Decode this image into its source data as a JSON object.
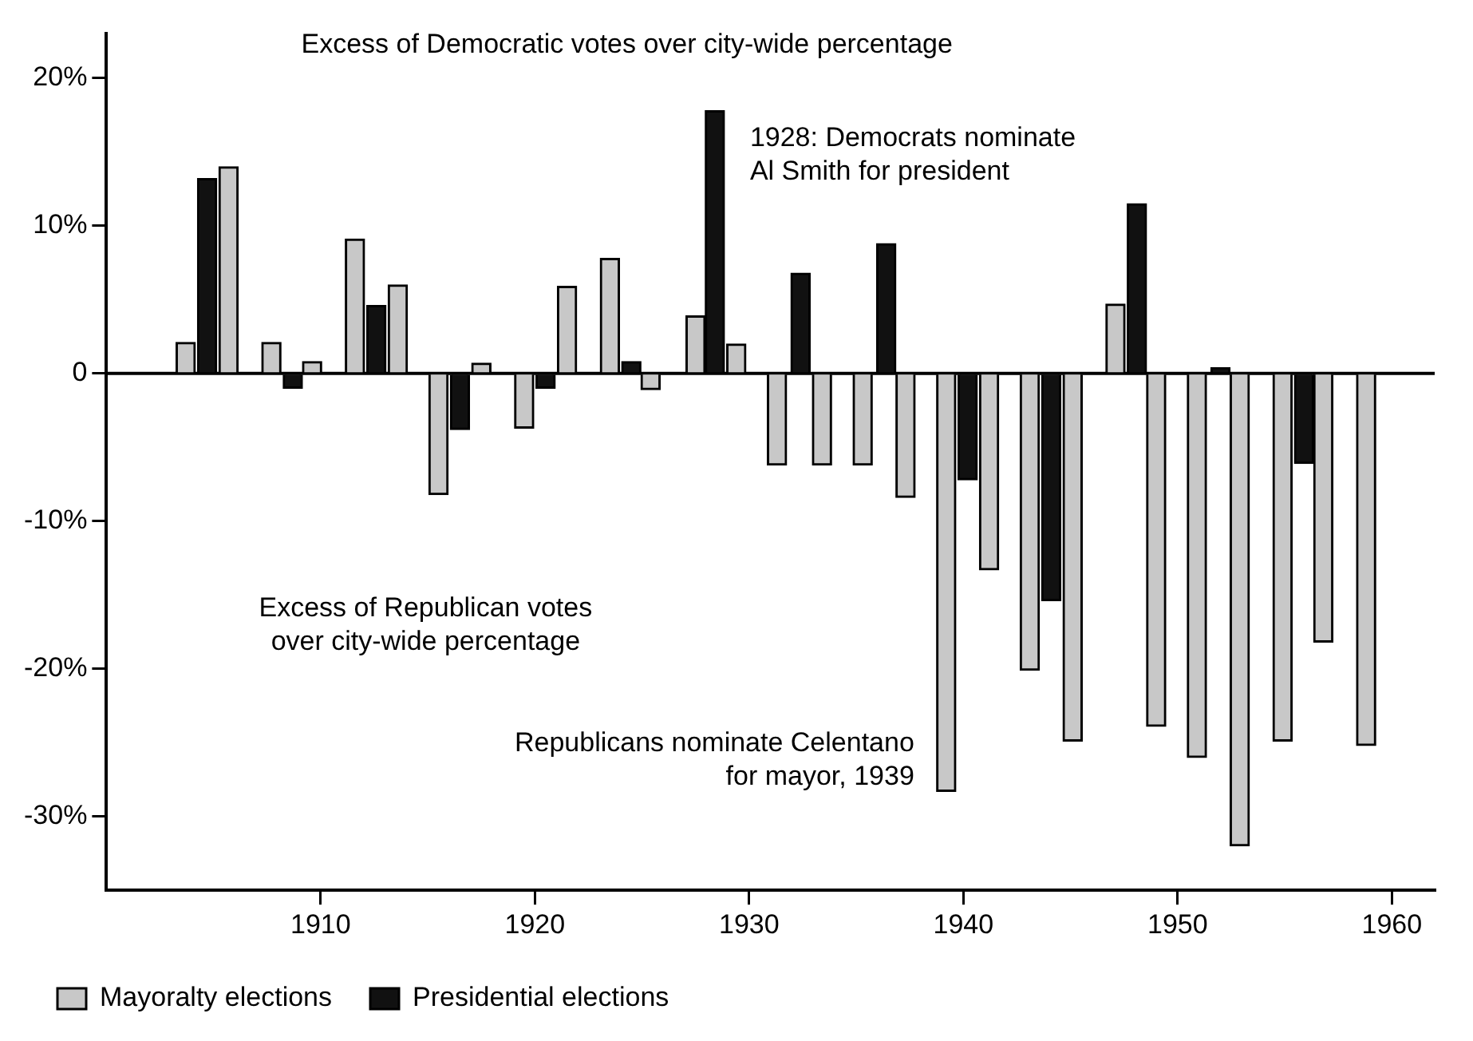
{
  "chart_data": {
    "type": "bar",
    "series": [
      {
        "name": "Mayoralty elections",
        "color": "#c8c8c8",
        "x": [
          1903.7,
          1905.7,
          1907.7,
          1909.6,
          1911.6,
          1913.6,
          1915.5,
          1917.5,
          1919.5,
          1921.5,
          1923.5,
          1925.4,
          1927.5,
          1929.4,
          1931.3,
          1933.4,
          1935.3,
          1937.3,
          1939.2,
          1941.2,
          1943.1,
          1945.1,
          1947.1,
          1949.0,
          1950.9,
          1952.9,
          1954.9,
          1956.8,
          1958.8
        ],
        "values": [
          2.1,
          14.0,
          2.1,
          0.8,
          9.1,
          6.0,
          -8.2,
          0.7,
          -3.7,
          5.9,
          7.8,
          -1.1,
          3.9,
          2.0,
          -6.2,
          -6.2,
          -6.2,
          -8.4,
          -28.3,
          -13.3,
          -20.1,
          -24.9,
          4.7,
          -23.9,
          -26.0,
          -32.0,
          -24.9,
          -18.2,
          -25.2
        ]
      },
      {
        "name": "Presidential elections",
        "color": "#111111",
        "x": [
          1904.7,
          1908.7,
          1912.6,
          1916.5,
          1920.5,
          1924.5,
          1928.4,
          1932.4,
          1936.4,
          1940.2,
          1944.1,
          1948.1,
          1952.0,
          1955.9
        ],
        "values": [
          13.2,
          -1.0,
          4.6,
          -3.8,
          -1.0,
          0.8,
          17.8,
          6.8,
          8.8,
          -7.2,
          -15.4,
          11.5,
          0.4,
          -6.1
        ]
      }
    ],
    "xlim": [
      1900,
      1962
    ],
    "xticks": [
      1910,
      1920,
      1930,
      1940,
      1950,
      1960
    ],
    "ylim": [
      -35,
      23
    ],
    "yticks": [
      {
        "value": -30,
        "label": "-30%"
      },
      {
        "value": -20,
        "label": "-20%"
      },
      {
        "value": -10,
        "label": "-10%"
      },
      0,
      {
        "value": 10,
        "label": "10%"
      },
      {
        "value": 20,
        "label": "20%"
      }
    ],
    "ref_lines": [
      {
        "axis": "y",
        "value": 0
      }
    ],
    "annotations": [
      "Excess of Democratic votes over city-wide percentage",
      "Excess of Republican votes\nover city-wide percentage",
      {
        "text": "1928: Democrats nominate\nAl Smith for president",
        "x": 1928.4,
        "y": 17.8
      },
      {
        "text": "Republicans nominate Celentano\nfor mayor, 1939",
        "x": 1939.2,
        "y": -28.3
      }
    ],
    "grid": false,
    "legend": "bottom left"
  }
}
